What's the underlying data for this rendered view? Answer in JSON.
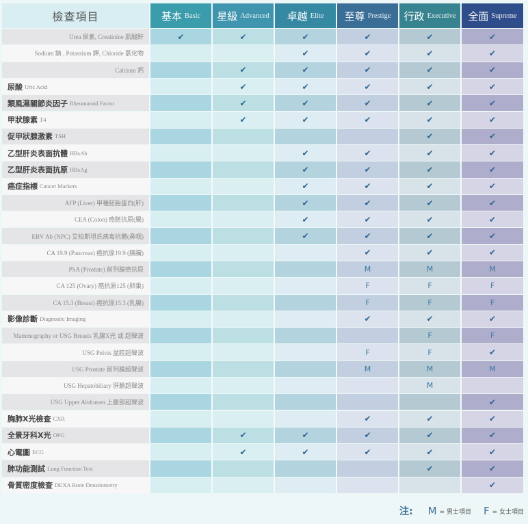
{
  "header": {
    "label": "檢查項目",
    "plans": [
      {
        "zh": "基本",
        "en": "Basic",
        "color": "#3b9cab"
      },
      {
        "zh": "星級",
        "en": "Advanced",
        "color": "#4095ae"
      },
      {
        "zh": "卓越",
        "en": "Elite",
        "color": "#3589a3"
      },
      {
        "zh": "至尊",
        "en": "Prestige",
        "color": "#3a6e97"
      },
      {
        "zh": "行政",
        "en": "Executive",
        "color": "#388390"
      },
      {
        "zh": "全面",
        "en": "Supreme",
        "color": "#2f4d8a"
      }
    ]
  },
  "column_colors": {
    "dark": [
      "#a9d6e1",
      "#bcdfe4",
      "#b3d3df",
      "#c2cfe0",
      "#b5c9d3",
      "#aeadcb"
    ],
    "light": [
      "#d8eff2",
      "#d9eff1",
      "#deedf3",
      "#dde3ee",
      "#d8e2e9",
      "#d6d5e6"
    ]
  },
  "legend": {
    "title": "注:",
    "m_key": "M",
    "m_desc": "= 男士項目",
    "f_key": "F",
    "f_desc": "= 女士項目"
  },
  "check_icon": "checkmark-icon",
  "rows": [
    {
      "sub": "Urea 尿素, Creatinine 肌酸酐",
      "v": [
        "✔",
        "✔",
        "✔",
        "✔",
        "✔",
        "✔"
      ]
    },
    {
      "sub": "Sodium 鈉 , Potassium 鉀, Chloride 氯化物",
      "v": [
        "",
        "",
        "✔",
        "✔",
        "✔",
        "✔"
      ]
    },
    {
      "sub": "Calcium 鈣",
      "v": [
        "",
        "✔",
        "✔",
        "✔",
        "✔",
        "✔"
      ]
    },
    {
      "zh": "尿酸",
      "en": "Uric Acid",
      "v": [
        "",
        "✔",
        "✔",
        "✔",
        "✔",
        "✔"
      ]
    },
    {
      "zh": "類風濕關節炎因子",
      "en": "Rheumatoid Factor",
      "v": [
        "",
        "✔",
        "✔",
        "✔",
        "✔",
        "✔"
      ]
    },
    {
      "zh": "甲狀腺素",
      "en": "T4",
      "v": [
        "",
        "✔",
        "✔",
        "✔",
        "✔",
        "✔"
      ]
    },
    {
      "zh": "促甲狀腺激素",
      "en": "TSH",
      "v": [
        "",
        "",
        "",
        "",
        "✔",
        "✔"
      ]
    },
    {
      "zh": "乙型肝炎表面抗體",
      "en": "HBsAb",
      "v": [
        "",
        "",
        "✔",
        "✔",
        "✔",
        "✔"
      ]
    },
    {
      "zh": "乙型肝炎表面抗原",
      "en": "HBsAg",
      "v": [
        "",
        "",
        "✔",
        "✔",
        "✔",
        "✔"
      ]
    },
    {
      "zh": "癌症指標",
      "en": "Cancer Markers",
      "v": [
        "",
        "",
        "✔",
        "✔",
        "✔",
        "✔"
      ]
    },
    {
      "sub": "AFP (Liver) 甲種胚胎蛋白(肝)",
      "v": [
        "",
        "",
        "✔",
        "✔",
        "✔",
        "✔"
      ]
    },
    {
      "sub": "CEA (Colon) 癌胚抗原(腸)",
      "v": [
        "",
        "",
        "✔",
        "✔",
        "✔",
        "✔"
      ]
    },
    {
      "sub": "EBV Ab (NPC) 艾柏斯坦氏病毒抗體(鼻咽)",
      "v": [
        "",
        "",
        "✔",
        "✔",
        "✔",
        "✔"
      ]
    },
    {
      "sub": "CA 19.9 (Pancreas) 癌抗原19.9 (胰臟)",
      "v": [
        "",
        "",
        "",
        "✔",
        "✔",
        "✔"
      ]
    },
    {
      "sub": "PSA (Prostate) 前列腺癌抗原",
      "v": [
        "",
        "",
        "",
        "M",
        "M",
        "M"
      ]
    },
    {
      "sub": "CA 125 (Ovary) 癌抗原125 (卵巢)",
      "v": [
        "",
        "",
        "",
        "F",
        "F",
        "F"
      ]
    },
    {
      "sub": "CA 15.3 (Breast) 癌抗原15.3 (乳腺)",
      "v": [
        "",
        "",
        "",
        "F",
        "F",
        "F"
      ]
    },
    {
      "zh": "影像診斷",
      "en": "Diagnostic Imaging",
      "v": [
        "",
        "",
        "",
        "✔",
        "✔",
        "✔"
      ]
    },
    {
      "sub": "Mammography or USG Breasts 乳腺X光 或 超聲波",
      "v": [
        "",
        "",
        "",
        "",
        "F",
        "F"
      ]
    },
    {
      "sub": "USG Pelvis 盆腔超聲波",
      "v": [
        "",
        "",
        "",
        "F",
        "F",
        "✔"
      ]
    },
    {
      "sub": "USG Prostate 前列腺超聲波",
      "v": [
        "",
        "",
        "",
        "M",
        "M",
        "M"
      ]
    },
    {
      "sub": "USG Hepatobiliary 肝膽超聲波",
      "v": [
        "",
        "",
        "",
        "",
        "M",
        ""
      ]
    },
    {
      "sub": "USG Upper Abdomen 上腹部超聲波",
      "v": [
        "",
        "",
        "",
        "",
        "",
        "✔"
      ]
    },
    {
      "zh": "胸肺X光檢查",
      "en": "CXR",
      "v": [
        "",
        "",
        "",
        "✔",
        "✔",
        "✔"
      ]
    },
    {
      "zh": "全景牙科X光",
      "en": "OPG",
      "v": [
        "",
        "✔",
        "✔",
        "✔",
        "✔",
        "✔"
      ]
    },
    {
      "zh": "心電圖",
      "en": "ECG",
      "v": [
        "",
        "✔",
        "✔",
        "✔",
        "✔",
        "✔"
      ]
    },
    {
      "zh": "肺功能測試",
      "en": "Lung Function Test",
      "v": [
        "",
        "",
        "",
        "",
        "✔",
        "✔"
      ]
    },
    {
      "zh": "骨質密度檢查",
      "en": "DEXA Bone Densitometry",
      "v": [
        "",
        "",
        "",
        "",
        "",
        "✔"
      ]
    }
  ]
}
